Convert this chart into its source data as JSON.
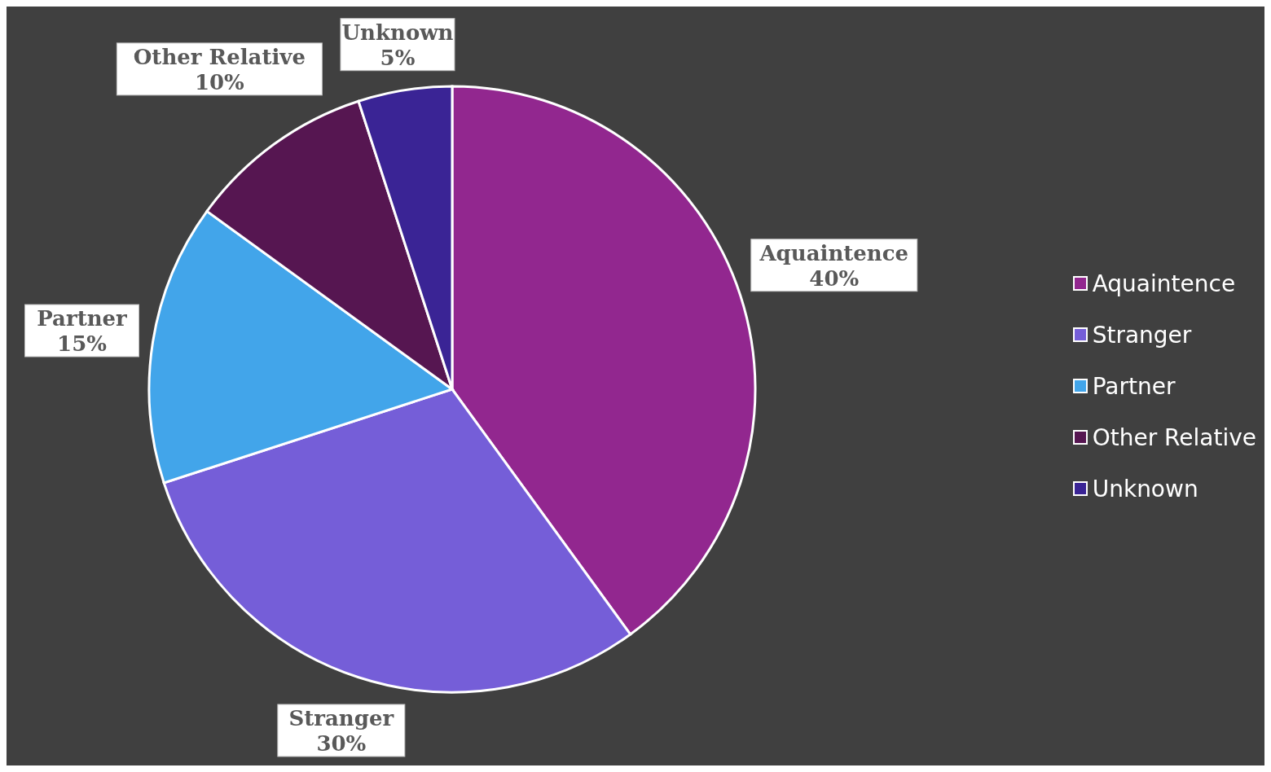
{
  "chart_data": {
    "type": "pie",
    "categories": [
      "Aquaintence",
      "Stranger",
      "Partner",
      "Other Relative",
      "Unknown"
    ],
    "values": [
      40,
      30,
      15,
      10,
      5
    ],
    "value_labels": [
      "40%",
      "30%",
      "15%",
      "10%",
      "5%"
    ],
    "colors": [
      "#92278f",
      "#755ed8",
      "#42a5ea",
      "#561651",
      "#3a2495"
    ],
    "legend": "right"
  }
}
